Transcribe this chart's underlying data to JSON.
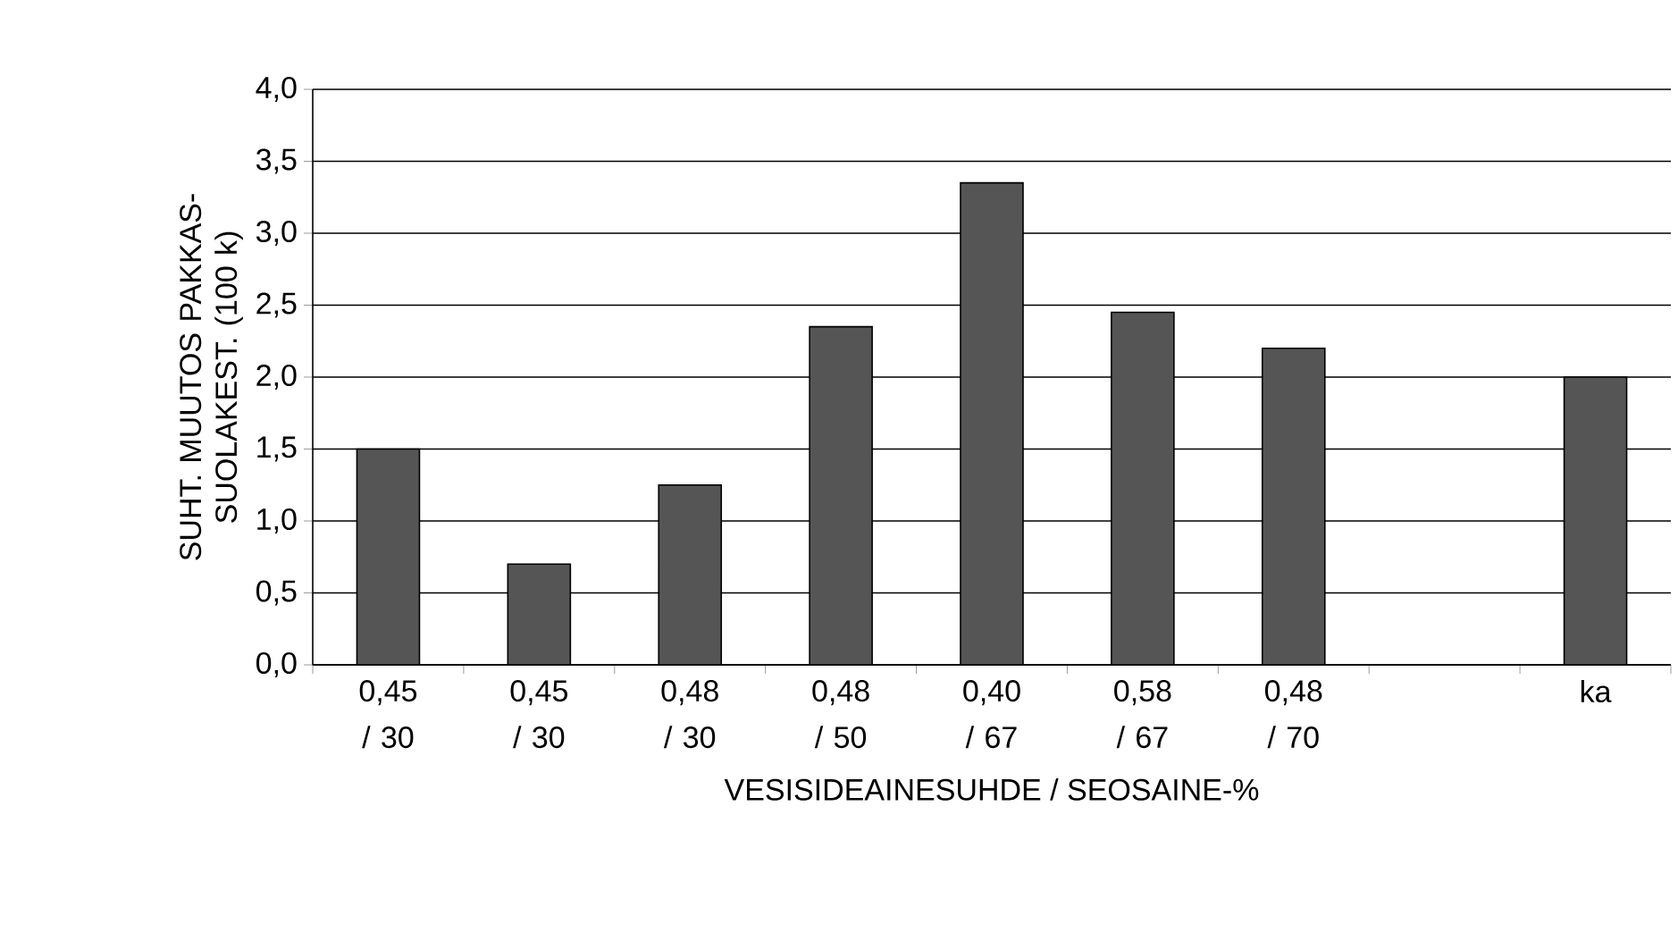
{
  "chart_data": {
    "type": "bar",
    "xlabel": "VESISIDEAINESUHDE / SEOSAINE-%",
    "ylabel": "SUHT. MUUTOS PAKKAS-SUOLAKEST. (100 k)",
    "categories": [
      "0,45 / 30",
      "0,45 / 30",
      "0,48 / 30",
      "0,48 / 50",
      "0,40 / 67",
      "0,58 / 67",
      "0,48 / 70",
      null,
      "ka"
    ],
    "values": [
      1.5,
      0.7,
      1.25,
      2.35,
      3.35,
      2.45,
      2.2,
      null,
      2.0
    ],
    "color": "#555555",
    "ylim": [
      0,
      4
    ],
    "yticks": [
      {
        "value": 0,
        "label": "0,0"
      },
      {
        "value": 0.5,
        "label": "0,5"
      },
      {
        "value": 1,
        "label": "1,0"
      },
      {
        "value": 1.5,
        "label": "1,5"
      },
      {
        "value": 2,
        "label": "2,0"
      },
      {
        "value": 2.5,
        "label": "2,5"
      },
      {
        "value": 3,
        "label": "3,0"
      },
      {
        "value": 3.5,
        "label": "3,5"
      },
      {
        "value": 4,
        "label": "4,0"
      }
    ],
    "grid": "y"
  }
}
